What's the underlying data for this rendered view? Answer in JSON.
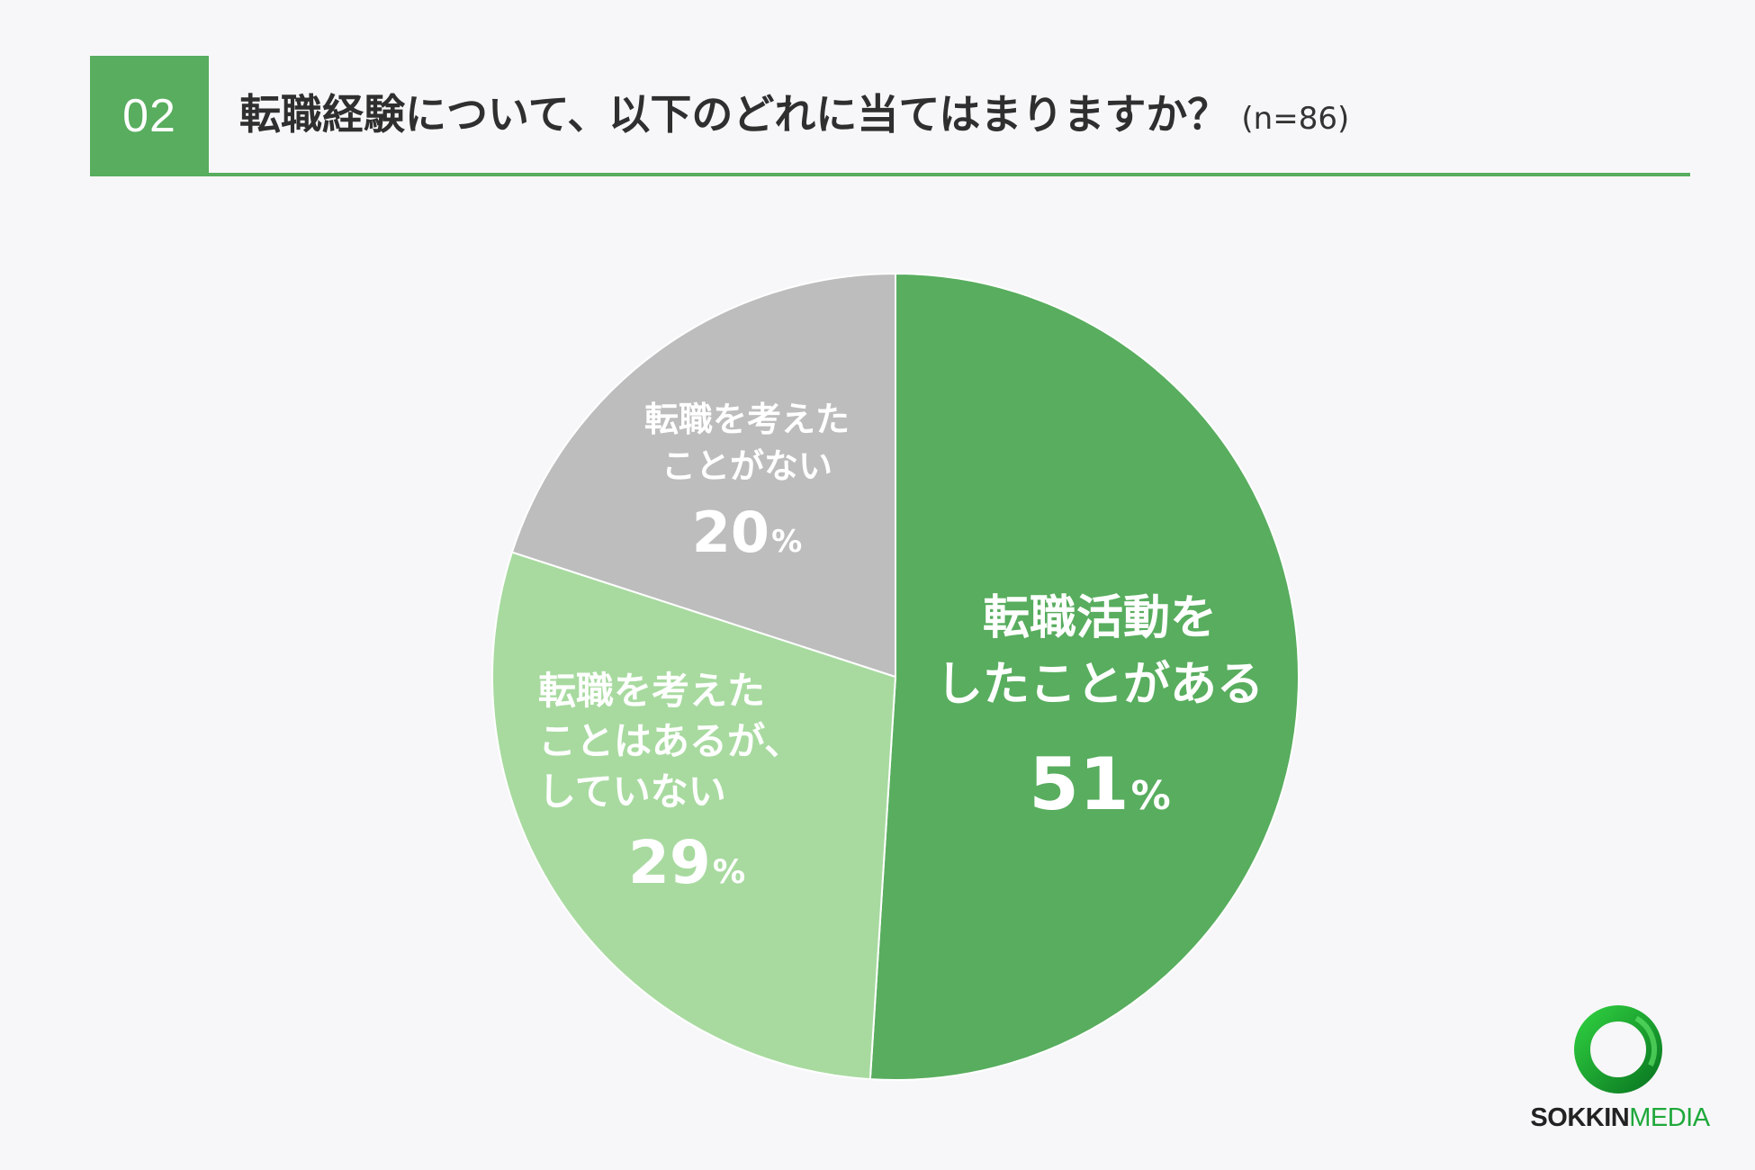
{
  "header": {
    "number": "02",
    "question": "転職経験について、以下のどれに当てはまりますか？",
    "sample": "(n=86)"
  },
  "chart_data": {
    "type": "pie",
    "slices": [
      {
        "label": "転職活動を\nしたことがある",
        "value": 51,
        "unit": "%",
        "color": "#58ad5e"
      },
      {
        "label": "転職を考えた\nことはあるが、\nしていない",
        "value": 29,
        "unit": "%",
        "color": "#a8daa0"
      },
      {
        "label": "転職を考えた\nことがない",
        "value": 20,
        "unit": "%",
        "color": "#bdbdbd"
      }
    ]
  },
  "logo": {
    "text_bold": "SOKKIN",
    "text_light": "MEDIA",
    "icon": "ring-logo-icon",
    "colors": [
      "#1fa83a",
      "#0b7a22"
    ]
  }
}
